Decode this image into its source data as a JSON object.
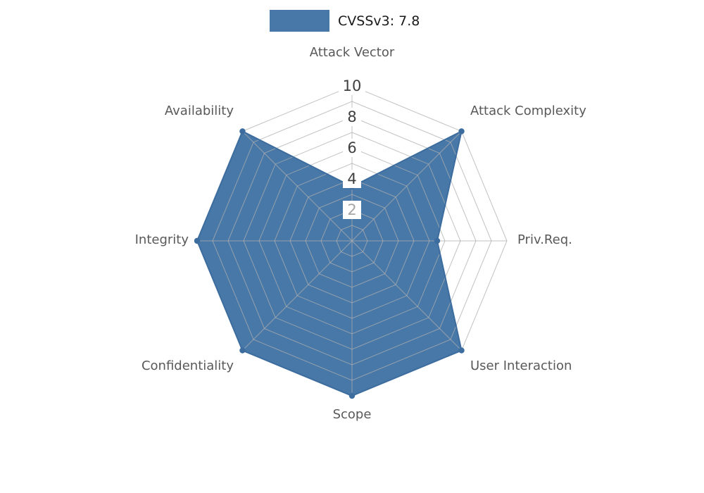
{
  "legend": {
    "label": "CVSSv3: 7.8",
    "swatch_color": "#4878A8"
  },
  "chart_data": {
    "type": "radar",
    "title": "CVSSv3: 7.8",
    "categories": [
      "Attack Vector",
      "Attack Complexity",
      "Priv.Req.",
      "User Interaction",
      "Scope",
      "Confidentiality",
      "Integrity",
      "Availability"
    ],
    "series": [
      {
        "name": "CVSSv3: 7.8",
        "values": [
          3.5,
          10,
          5.5,
          10,
          10,
          10,
          10,
          10
        ]
      }
    ],
    "axis_range": [
      0,
      10
    ],
    "grid_step": 1,
    "tick_labels": [
      2,
      4,
      6,
      8,
      10
    ],
    "legend_position": "top",
    "grid": true,
    "colors": {
      "fill": "#4878A8",
      "edge": "#3D6D9E",
      "grid": "#ADADAD",
      "axis_label": "#595959",
      "tick_dark": "#3F3F3F",
      "tick_light": "#A6A6A6",
      "tick_box": "#FFFFFF"
    }
  }
}
